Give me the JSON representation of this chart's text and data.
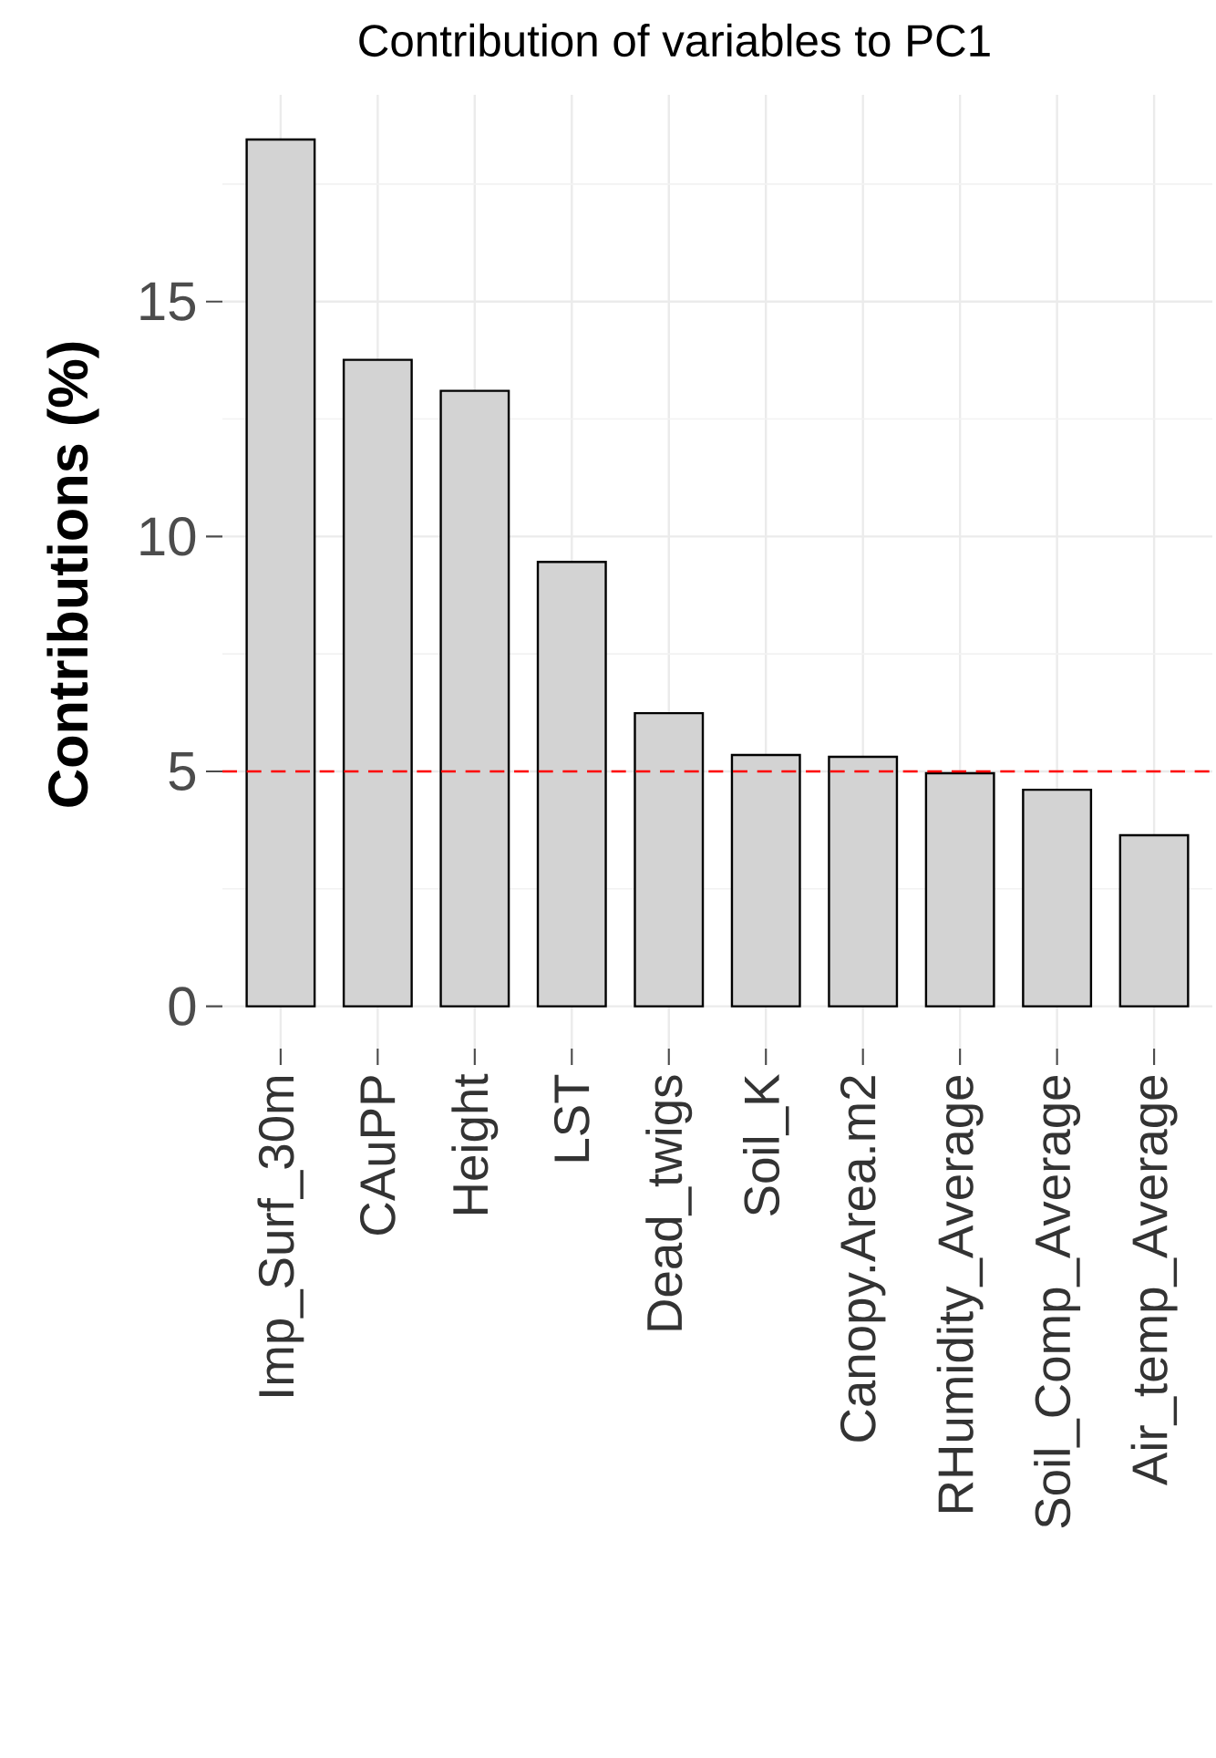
{
  "chart_data": {
    "type": "bar",
    "title": "Contribution of variables to PC1",
    "ylabel": "Contributions (%)",
    "categories": [
      "Imp_Surf_30m",
      "CAuPP",
      "Height",
      "LST",
      "Dead_twigs",
      "Soil_K",
      "Canopy.Area.m2",
      "RHumidity_Average",
      "Soil_Comp_Average",
      "Air_temp_Average"
    ],
    "values": [
      18.45,
      13.76,
      13.1,
      9.46,
      6.24,
      5.35,
      5.31,
      4.96,
      4.61,
      3.64
    ],
    "color": "#d3d3d3",
    "ylim": [
      -0.9,
      19.4
    ],
    "yticks": [
      0,
      5,
      10,
      15
    ],
    "grid": true,
    "ref_lines": [
      {
        "axis": "y",
        "value": 5,
        "color": "#ff0000",
        "line_style": "dashed"
      }
    ]
  }
}
